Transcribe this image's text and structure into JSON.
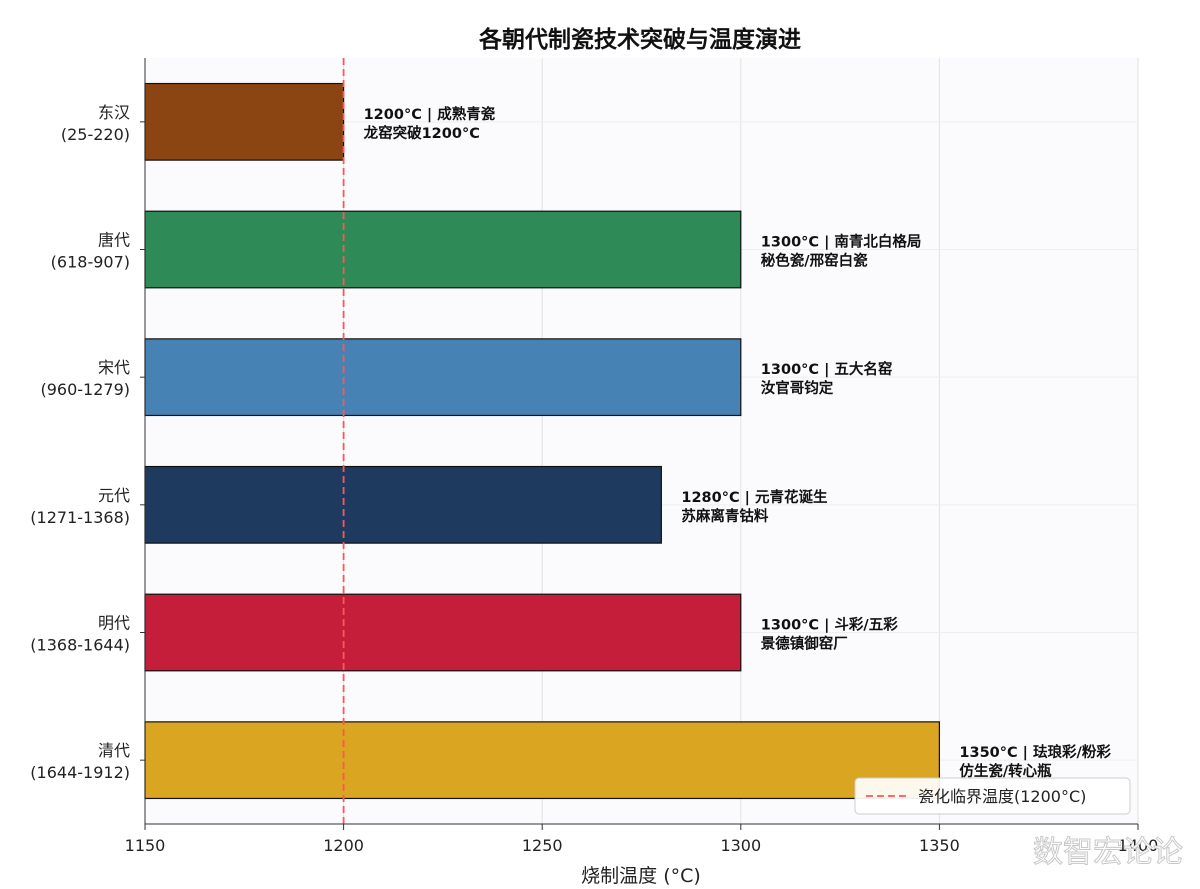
{
  "chart_data": {
    "type": "bar",
    "orientation": "horizontal",
    "title": "各朝代制瓷技术突破与温度演进",
    "xlabel": "烧制温度 (°C)",
    "ylabel": "",
    "xlim": [
      1150,
      1400
    ],
    "xticks": [
      "1150",
      "1200",
      "1250",
      "1300",
      "1350",
      "1400"
    ],
    "grid": true,
    "categories": [
      {
        "name": "东汉",
        "years": "(25-220)"
      },
      {
        "name": "唐代",
        "years": "(618-907)"
      },
      {
        "name": "宋代",
        "years": "(960-1279)"
      },
      {
        "name": "元代",
        "years": "(1271-1368)"
      },
      {
        "name": "明代",
        "years": "(1368-1644)"
      },
      {
        "name": "清代",
        "years": "(1644-1912)"
      }
    ],
    "values": [
      1200,
      1300,
      1300,
      1280,
      1300,
      1350
    ],
    "colors": [
      "#8B4513",
      "#2E8B57",
      "#4682B4",
      "#1F3A5F",
      "#C41E3A",
      "#DAA520"
    ],
    "annotations": [
      [
        "1200°C  |  成熟青瓷",
        "龙窑突破1200°C"
      ],
      [
        "1300°C  |  南青北白格局",
        "秘色瓷/邢窑白瓷"
      ],
      [
        "1300°C  |  五大名窑",
        "汝官哥钧定"
      ],
      [
        "1280°C  |  元青花诞生",
        "苏麻离青钴料"
      ],
      [
        "1300°C  |  斗彩/五彩",
        "景德镇御窑厂"
      ],
      [
        "1350°C  |  珐琅彩/粉彩",
        "仿生瓷/转心瓶"
      ]
    ],
    "reference_line": {
      "value": 1200,
      "label": "瓷化临界温度(1200°C)",
      "color": "#FF5555"
    },
    "legend_position": "lower-right"
  },
  "watermark": "数智宏论论"
}
